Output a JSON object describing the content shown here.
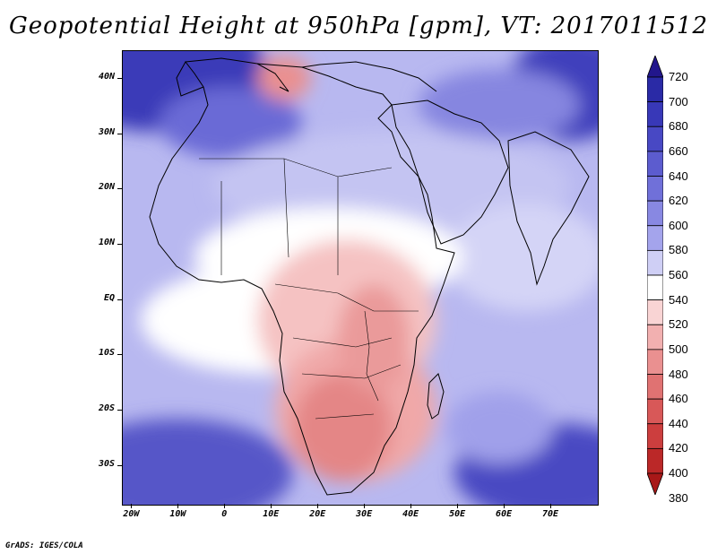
{
  "title": "Geopotential Height at 950hPa [gpm], VT: 2017011512",
  "footer": "GrADS: IGES/COLA",
  "map": {
    "lat_labels": [
      "40N",
      "30N",
      "20N",
      "10N",
      "EQ",
      "10S",
      "20S",
      "30S"
    ],
    "lat_values": [
      40,
      30,
      20,
      10,
      0,
      -10,
      -20,
      -30
    ],
    "lon_labels": [
      "20W",
      "10W",
      "0",
      "10E",
      "20E",
      "30E",
      "40E",
      "50E",
      "60E",
      "70E"
    ],
    "lon_values": [
      -20,
      -10,
      0,
      10,
      20,
      30,
      40,
      50,
      60,
      70
    ],
    "lat_range": [
      -37,
      45
    ],
    "lon_range": [
      -22,
      80
    ]
  },
  "colorbar": {
    "levels": [
      "720",
      "700",
      "680",
      "660",
      "640",
      "620",
      "600",
      "580",
      "560",
      "540",
      "520",
      "500",
      "480",
      "460",
      "440",
      "420",
      "400",
      "380"
    ],
    "colors": [
      "#22168c",
      "#2a2aa6",
      "#3838b8",
      "#4848c4",
      "#5c5ccf",
      "#7070d9",
      "#8888e2",
      "#a4a4ec",
      "#cfcff5",
      "#ffffff",
      "#f9d4d4",
      "#f2b0b0",
      "#ea9090",
      "#e07272",
      "#d85858",
      "#cc3e3e",
      "#bb2828",
      "#a81818"
    ]
  }
}
